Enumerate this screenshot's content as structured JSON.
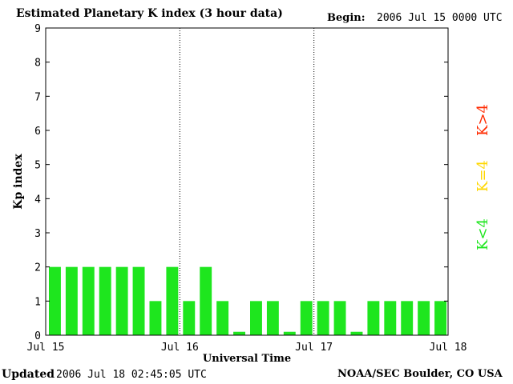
{
  "header": {
    "title": "Estimated Planetary K index (3 hour data)",
    "begin_label": "Begin:",
    "begin_value": "2006 Jul 15 0000 UTC"
  },
  "footer": {
    "updated_label": "Updated",
    "updated_value": "2006 Jul 18 02:45:05 UTC",
    "credit": "NOAA/SEC Boulder, CO USA"
  },
  "legend": [
    {
      "label": "K>4",
      "color": "#ff2a00"
    },
    {
      "label": "K=4",
      "color": "#ffd700"
    },
    {
      "label": "K<4",
      "color": "#1ee61e"
    }
  ],
  "chart_data": {
    "type": "bar",
    "title": "Estimated Planetary K index (3 hour data)",
    "xlabel": "Universal Time",
    "ylabel": "Kp index",
    "ylim": [
      0,
      9
    ],
    "yticks": [
      0,
      1,
      2,
      3,
      4,
      5,
      6,
      7,
      8,
      9
    ],
    "xticks": [
      "Jul 15",
      "Jul 16",
      "Jul 17",
      "Jul 18"
    ],
    "day_dividers": [
      "Jul 16",
      "Jul 17"
    ],
    "bar_color": "#1ee61e",
    "values": [
      2,
      2,
      2,
      2,
      2,
      2,
      1,
      2,
      1,
      2,
      1,
      0.1,
      1,
      1,
      0.1,
      1,
      1,
      1,
      0.1,
      1,
      1,
      1,
      1,
      1
    ],
    "grid": false
  }
}
